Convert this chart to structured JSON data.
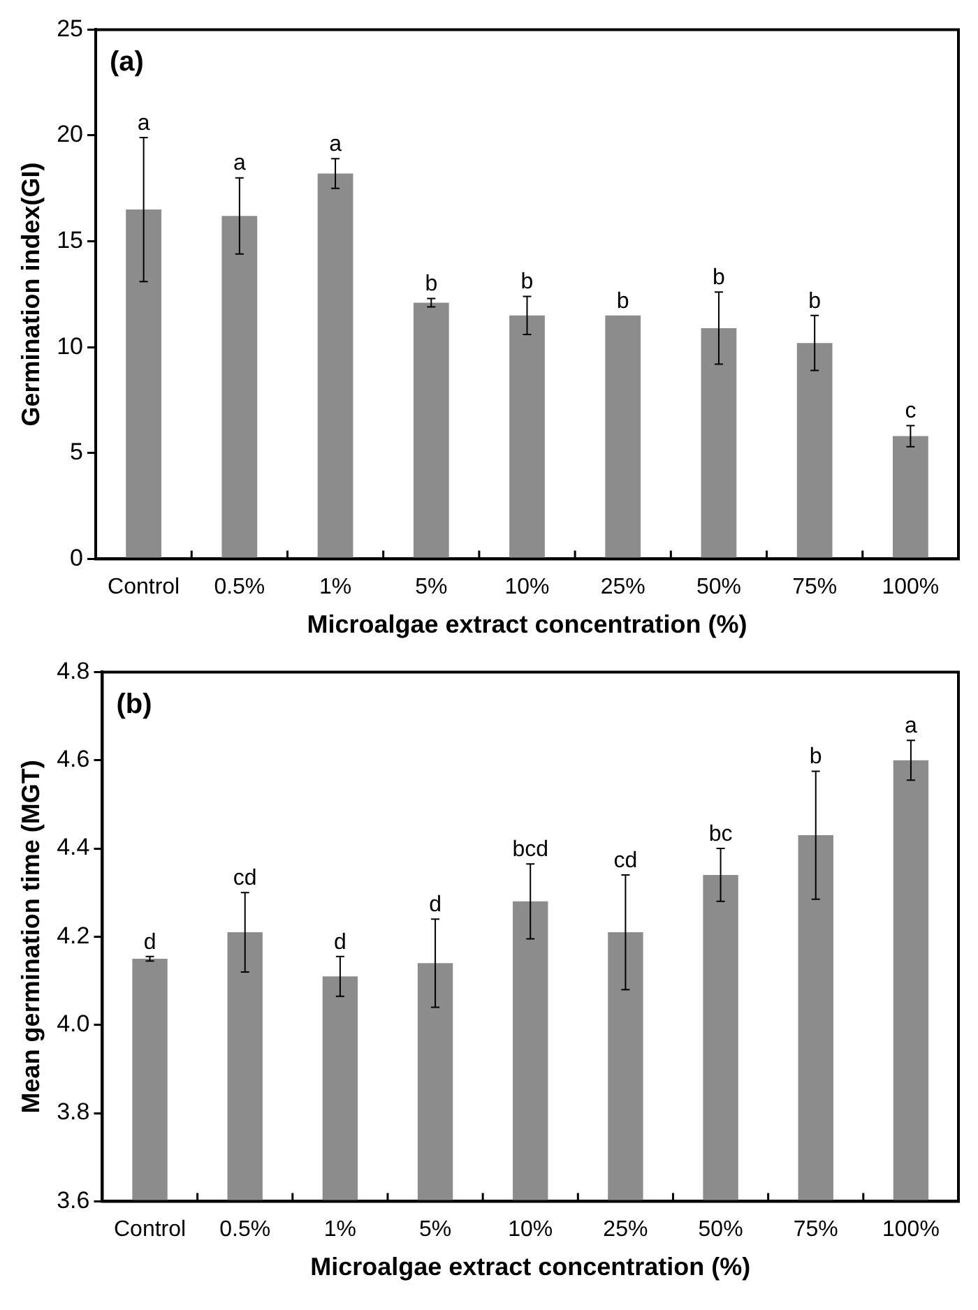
{
  "chart_data": [
    {
      "type": "bar",
      "xlabel": "Microalgae extract concentration (%)",
      "ylabel": "Germination index(GI)",
      "categories": [
        "Control",
        "0.5%",
        "1%",
        "5%",
        "10%",
        "25%",
        "50%",
        "75%",
        "100%"
      ],
      "values": [
        16.5,
        16.2,
        18.2,
        12.1,
        11.5,
        11.5,
        10.9,
        10.2,
        5.8
      ],
      "errors": [
        3.4,
        1.8,
        0.7,
        0.2,
        0.9,
        null,
        1.7,
        1.3,
        0.5
      ],
      "color": "#8c8c8c",
      "ylim": [
        0,
        25
      ],
      "yticks": [
        0,
        5,
        10,
        15,
        20,
        25
      ],
      "annotations": [
        "(a)",
        {
          "text": "a",
          "x": "Control",
          "y": 19.9
        },
        {
          "text": "a",
          "x": "0.5%",
          "y": 18.0
        },
        {
          "text": "a",
          "x": "1%",
          "y": 18.9
        },
        {
          "text": "b",
          "x": "5%",
          "y": 12.3
        },
        {
          "text": "b",
          "x": "10%",
          "y": 12.4
        },
        {
          "text": "b",
          "x": "25%",
          "y": 11.5
        },
        {
          "text": "b",
          "x": "50%",
          "y": 12.6
        },
        {
          "text": "b",
          "x": "75%",
          "y": 11.5
        },
        {
          "text": "c",
          "x": "100%",
          "y": 6.3
        }
      ]
    },
    {
      "type": "bar",
      "xlabel": "Microalgae extract concentration (%)",
      "ylabel": "Mean germination time (MGT)",
      "categories": [
        "Control",
        "0.5%",
        "1%",
        "5%",
        "10%",
        "25%",
        "50%",
        "75%",
        "100%"
      ],
      "values": [
        4.15,
        4.21,
        4.11,
        4.14,
        4.28,
        4.21,
        4.34,
        4.43,
        4.6
      ],
      "errors": [
        0.005,
        0.09,
        0.045,
        0.1,
        0.085,
        0.13,
        0.06,
        0.145,
        0.045
      ],
      "color": "#8c8c8c",
      "ylim": [
        3.6,
        4.8
      ],
      "yticks": [
        3.6,
        3.8,
        {
          "value": 4,
          "label": "4.0"
        },
        4.2,
        4.4,
        4.6,
        4.8
      ],
      "annotations": [
        "(b)",
        {
          "text": "d",
          "x": "Control",
          "y": 4.155
        },
        {
          "text": "cd",
          "x": "0.5%",
          "y": 4.3
        },
        {
          "text": "d",
          "x": "1%",
          "y": 4.155
        },
        {
          "text": "d",
          "x": "5%",
          "y": 4.24
        },
        {
          "text": "bcd",
          "x": "10%",
          "y": 4.365
        },
        {
          "text": "cd",
          "x": "25%",
          "y": 4.34
        },
        {
          "text": "bc",
          "x": "50%",
          "y": 4.4
        },
        {
          "text": "b",
          "x": "75%",
          "y": 4.575
        },
        {
          "text": "a",
          "x": "100%",
          "y": 4.645
        }
      ]
    }
  ]
}
